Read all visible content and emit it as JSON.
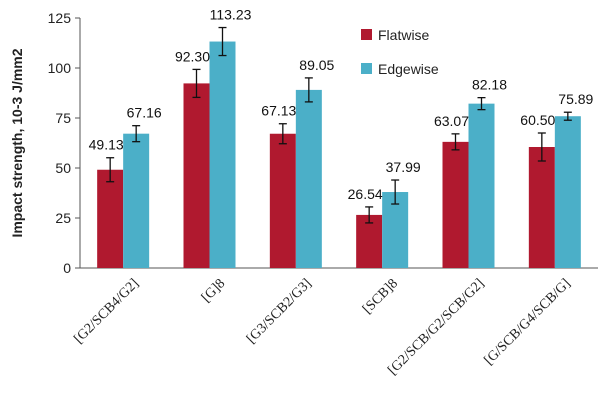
{
  "chart_data": {
    "type": "bar",
    "title": "",
    "xlabel": "",
    "ylabel": "Impact strength, 10-3 J/mm2",
    "ylim": [
      0,
      125
    ],
    "yticks": [
      0,
      25,
      50,
      75,
      100,
      125
    ],
    "grid": false,
    "legend": "top-right",
    "categories": [
      "[G2/SCB4/G2]",
      "[G]8",
      "[G3/SCB2/G3]",
      "[SCB]8",
      "[G2/SCB/G2/SCB/G2]",
      "[G/SCB/G4/SCB/G]"
    ],
    "series": [
      {
        "name": "Flatwise",
        "color": "#b0192f",
        "values": [
          49.13,
          92.3,
          67.13,
          26.54,
          63.07,
          60.5
        ],
        "labels": [
          "49.13",
          "92.30",
          "67.13",
          "26.54",
          "63.07",
          "60.50"
        ],
        "error": [
          6,
          7,
          5,
          4,
          4,
          7
        ]
      },
      {
        "name": "Edgewise",
        "color": "#4bafc8",
        "values": [
          67.16,
          113.23,
          89.05,
          37.99,
          82.18,
          75.89
        ],
        "labels": [
          "67.16",
          "113.23",
          "89.05",
          "37.99",
          "82.18",
          "75.89"
        ],
        "error": [
          4,
          7,
          6,
          6,
          3,
          2
        ]
      }
    ]
  }
}
